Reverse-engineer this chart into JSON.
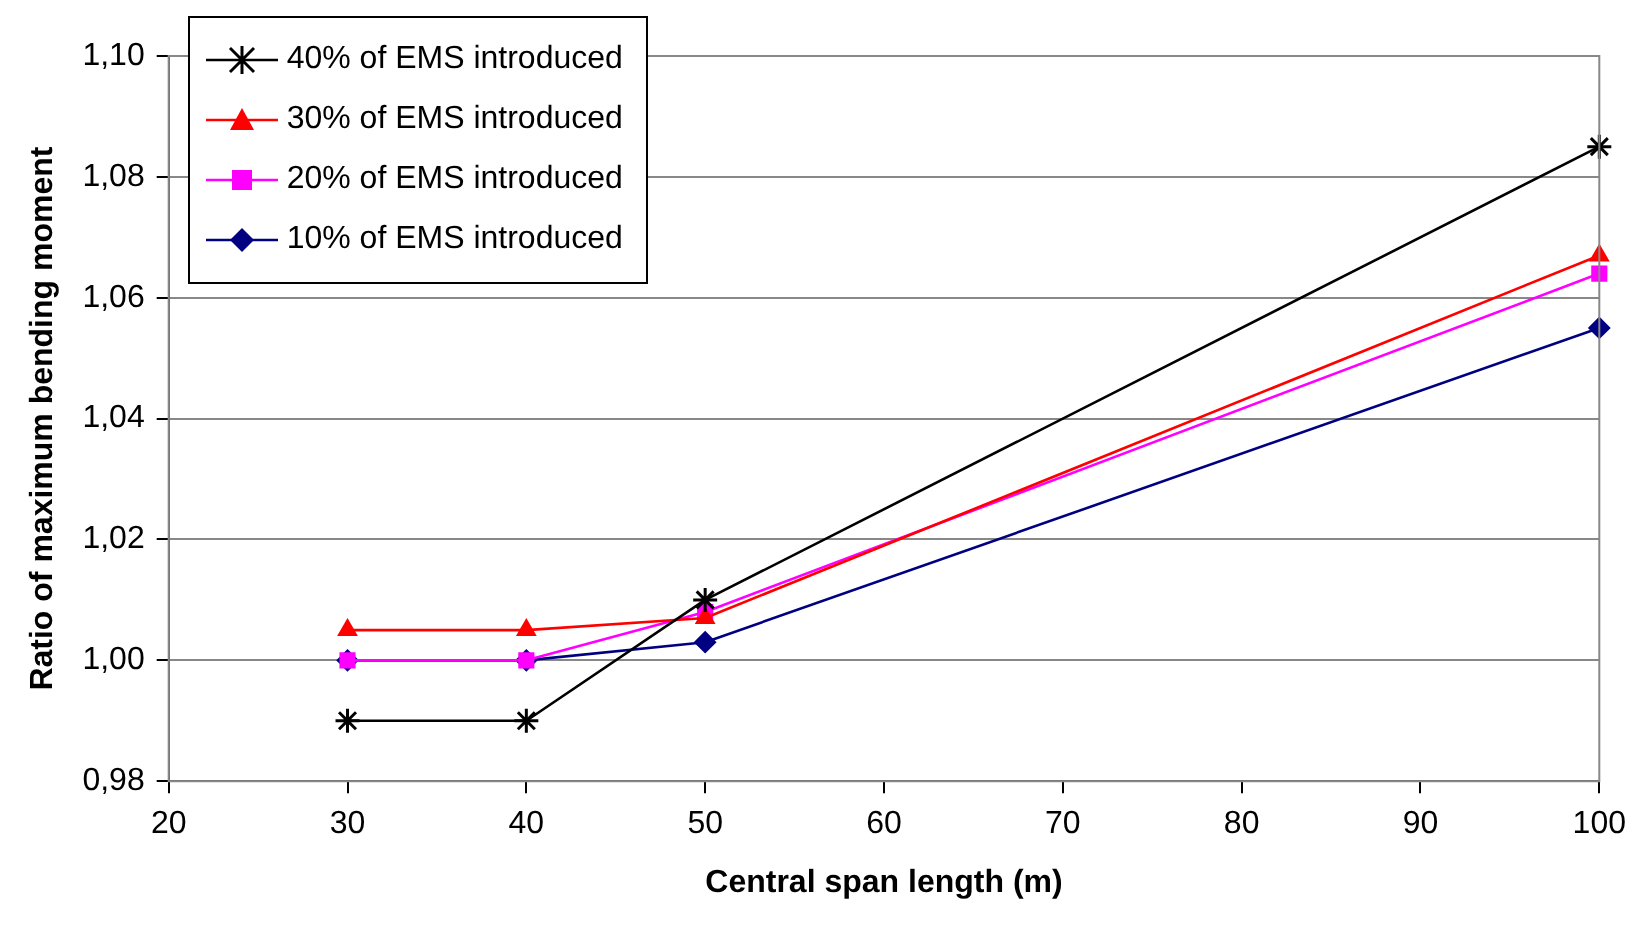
{
  "chart_data": {
    "type": "line",
    "xlabel": "Central span length (m)",
    "ylabel": "Ratio of maximum bending moment",
    "x": [
      30,
      40,
      50,
      100
    ],
    "series": [
      {
        "name": "40% of EMS introduced",
        "color": "#000000",
        "marker": "cross",
        "values": [
          0.99,
          0.99,
          1.01,
          1.085
        ]
      },
      {
        "name": "30% of EMS introduced",
        "color": "#ff0000",
        "marker": "triangle",
        "values": [
          1.005,
          1.005,
          1.007,
          1.067
        ]
      },
      {
        "name": "20% of EMS introduced",
        "color": "#ff00ff",
        "marker": "square",
        "values": [
          1.0,
          1.0,
          1.008,
          1.064
        ]
      },
      {
        "name": "10% of EMS introduced",
        "color": "#000080",
        "marker": "diamond",
        "values": [
          1.0,
          1.0,
          1.003,
          1.055
        ]
      }
    ],
    "xlim": [
      20,
      100
    ],
    "xticks": [
      20,
      30,
      40,
      50,
      60,
      70,
      80,
      90,
      100
    ],
    "ylim": [
      0.98,
      1.1
    ],
    "yticks": [
      {
        "value": 0.98,
        "label": "0,98"
      },
      {
        "value": 1.0,
        "label": "1,00"
      },
      {
        "value": 1.02,
        "label": "1,02"
      },
      {
        "value": 1.04,
        "label": "1,04"
      },
      {
        "value": 1.06,
        "label": "1,06"
      },
      {
        "value": 1.08,
        "label": "1,08"
      },
      {
        "value": 1.1,
        "label": "1,10"
      }
    ],
    "grid": "y",
    "legend": "top left",
    "line_style": "solid"
  }
}
